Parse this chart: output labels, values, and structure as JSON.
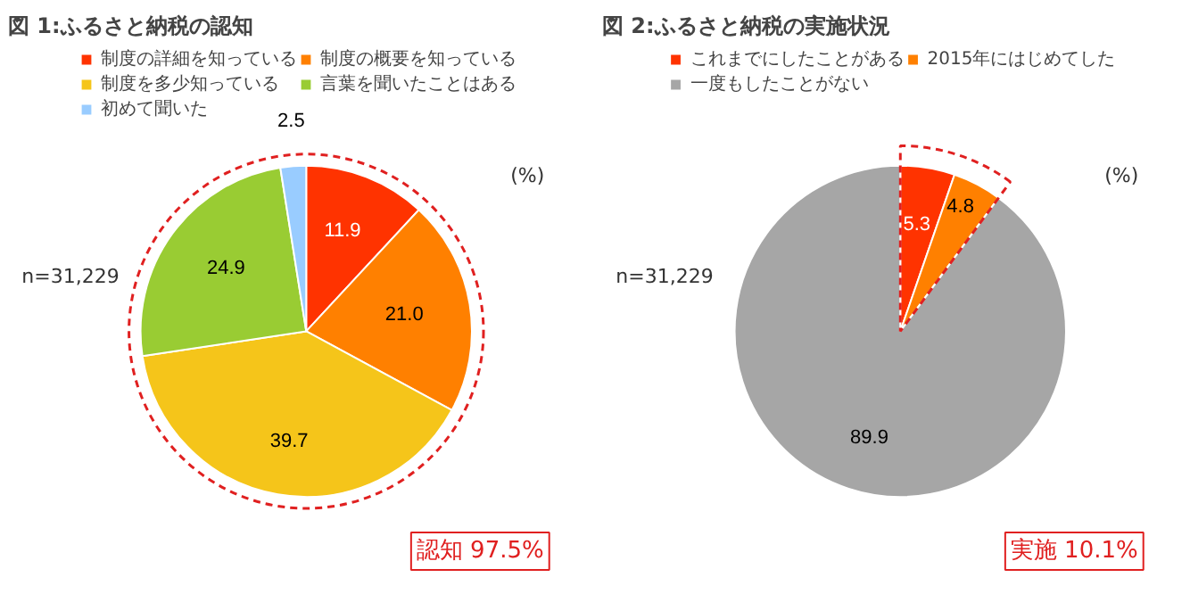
{
  "chart_data": [
    {
      "type": "pie",
      "title": "図 1:ふるさと納税の認知",
      "categories": [
        "制度の詳細を知っている",
        "制度の概要を知っている",
        "制度を多少知っている",
        "言葉を聞いたことはある",
        "初めて聞いた"
      ],
      "values": [
        11.9,
        21.0,
        39.7,
        24.9,
        2.5
      ],
      "value_labels": [
        "11.9",
        "21.0",
        "39.7",
        "24.9",
        "2.5"
      ],
      "colors": [
        "#ff3300",
        "#ff8000",
        "#f5c51a",
        "#99cc33",
        "#99ccff"
      ],
      "data_labels": true,
      "legend": "top",
      "annotations": [
        "n=31,229",
        "(%)",
        "認知 97.5%"
      ]
    },
    {
      "type": "pie",
      "title": "図 2:ふるさと納税の実施状況",
      "categories": [
        "これまでにしたことがある",
        "2015年にはじめてした",
        "一度もしたことがない"
      ],
      "values": [
        5.3,
        4.8,
        89.9
      ],
      "value_labels": [
        "5.3",
        "4.8",
        "89.9"
      ],
      "colors": [
        "#ff3300",
        "#ff8000",
        "#a6a6a6"
      ],
      "data_labels": true,
      "legend": "top",
      "annotations": [
        "n=31,229",
        "(%)",
        "実施 10.1%"
      ]
    }
  ]
}
